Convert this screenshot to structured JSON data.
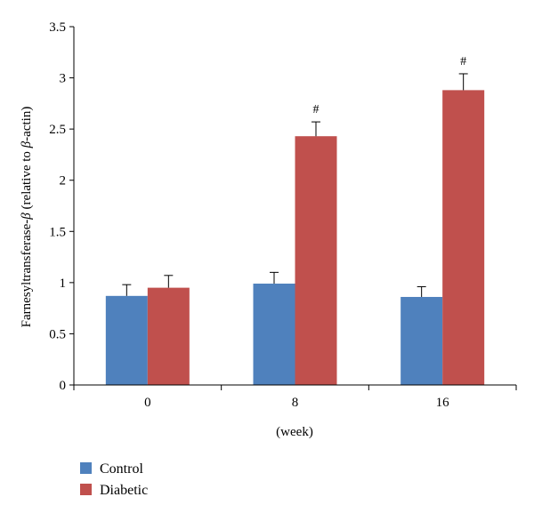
{
  "chart_data": {
    "type": "bar",
    "categories": [
      "0",
      "8",
      "16"
    ],
    "series": [
      {
        "name": "Control",
        "values": [
          0.87,
          0.99,
          0.86
        ],
        "errors": [
          0.11,
          0.11,
          0.1
        ],
        "color": "#4F81BD",
        "annotations": [
          "",
          "",
          ""
        ]
      },
      {
        "name": "Diabetic",
        "values": [
          0.95,
          2.43,
          2.88
        ],
        "errors": [
          0.12,
          0.14,
          0.16
        ],
        "color": "#C0504D",
        "annotations": [
          "",
          "#",
          "#"
        ]
      }
    ],
    "xlabel": "(week)",
    "ylabel_parts": [
      "Farnesyltransferase-",
      "β",
      " (relative to ",
      "β",
      "-actin)"
    ],
    "ylim": [
      0,
      3.5
    ],
    "yticks": [
      "0",
      "0.5",
      "1",
      "1.5",
      "2",
      "2.5",
      "3",
      "3.5"
    ],
    "grid": false,
    "legend_position": "bottom-left"
  }
}
